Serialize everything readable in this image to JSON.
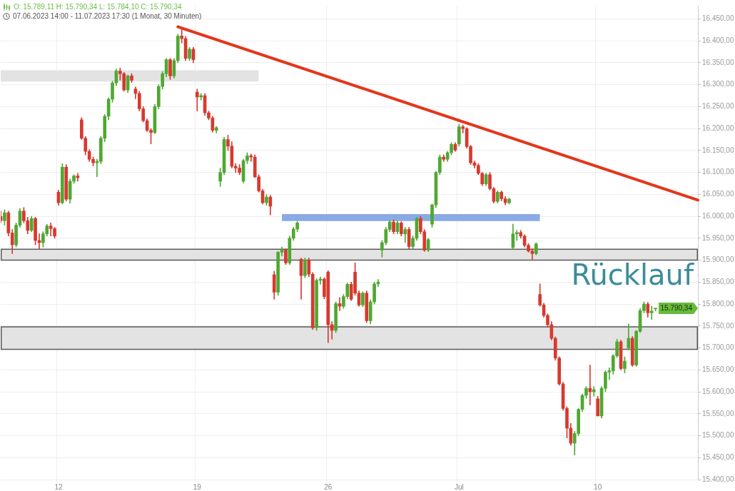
{
  "chart_data": {
    "type": "candlestick",
    "title": "O: 15.789,11  H: 15.790,34  L: 15.784,10  C: 15.790,34",
    "subtitle": "07.06.2023 14:00 - 11.07.2023 17:30   (1 Monat, 30 Minuten)",
    "categories": [
      null,
      null,
      null,
      null,
      null,
      null,
      null,
      null,
      null,
      null,
      null,
      null,
      null,
      null,
      null,
      "12",
      null,
      null,
      null,
      null,
      null,
      null,
      null,
      null,
      null,
      null,
      null,
      null,
      null,
      null,
      null,
      null,
      null,
      null,
      null,
      null,
      null,
      null,
      null,
      null,
      null,
      null,
      null,
      null,
      null,
      null,
      null,
      null,
      null,
      null,
      null,
      "19",
      null,
      null,
      null,
      null,
      null,
      null,
      null,
      null,
      null,
      null,
      null,
      null,
      null,
      null,
      null,
      null,
      null,
      null,
      null,
      null,
      null,
      null,
      null,
      null,
      null,
      null,
      null,
      null,
      null,
      null,
      null,
      null,
      null,
      "26",
      null,
      null,
      null,
      null,
      null,
      null,
      null,
      null,
      null,
      null,
      null,
      null,
      null,
      null,
      null,
      null,
      null,
      null,
      null,
      null,
      null,
      null,
      null,
      null,
      null,
      null,
      null,
      null,
      null,
      null,
      null,
      null,
      null,
      "Jul",
      null,
      null,
      null,
      null,
      null,
      null,
      null,
      null,
      null,
      null,
      null,
      null,
      null,
      null,
      null,
      null,
      null,
      null,
      null,
      null,
      null,
      null,
      null,
      null,
      null,
      null,
      null,
      null,
      null,
      null,
      null,
      null,
      null,
      null,
      null,
      "10",
      null,
      null,
      null,
      null,
      null,
      null,
      null,
      null,
      null,
      null,
      null,
      null,
      null,
      null,
      null,
      null,
      null,
      null,
      null,
      null,
      null,
      null,
      null,
      null,
      null,
      null
    ],
    "ohlc": [
      [
        16000,
        16012,
        15985,
        15990
      ],
      [
        15990,
        16015,
        15980,
        16008
      ],
      [
        16008,
        16012,
        15955,
        15962
      ],
      [
        15962,
        15970,
        15915,
        15935
      ],
      [
        15935,
        15985,
        15930,
        15980
      ],
      [
        15980,
        16018,
        15975,
        16012
      ],
      [
        16012,
        16020,
        15985,
        15990
      ],
      [
        15990,
        15998,
        15960,
        15968
      ],
      [
        15968,
        16000,
        15965,
        15995
      ],
      [
        15995,
        15998,
        15935,
        15945
      ],
      [
        15945,
        15960,
        15925,
        15940
      ],
      [
        15940,
        15965,
        15930,
        15960
      ],
      [
        15960,
        15982,
        15955,
        15978
      ],
      [
        15978,
        15985,
        15955,
        15972
      ],
      [
        15972,
        15975,
        15950,
        15955
      ],
      [
        16055,
        16060,
        16025,
        16031
      ],
      [
        16031,
        16120,
        16028,
        16112
      ],
      [
        16112,
        16118,
        16035,
        16039
      ],
      [
        16039,
        16085,
        16030,
        16080
      ],
      [
        16080,
        16095,
        16075,
        16092
      ],
      [
        16092,
        16098,
        16080,
        16088
      ],
      [
        16220,
        16225,
        16175,
        16178
      ],
      [
        16178,
        16182,
        16140,
        16148
      ],
      [
        16148,
        16152,
        16125,
        16130
      ],
      [
        16130,
        16135,
        16115,
        16122
      ],
      [
        16122,
        16130,
        16090,
        16125
      ],
      [
        16125,
        16182,
        16120,
        16178
      ],
      [
        16178,
        16232,
        16170,
        16228
      ],
      [
        16228,
        16270,
        16220,
        16267
      ],
      [
        16267,
        16308,
        16260,
        16304
      ],
      [
        16304,
        16336,
        16298,
        16331
      ],
      [
        16331,
        16338,
        16310,
        16325
      ],
      [
        16325,
        16328,
        16285,
        16288
      ],
      [
        16288,
        16322,
        16282,
        16320
      ],
      [
        16320,
        16325,
        16305,
        16310
      ],
      [
        16290,
        16295,
        16268,
        16280
      ],
      [
        16280,
        16285,
        16240,
        16245
      ],
      [
        16245,
        16250,
        16215,
        16218
      ],
      [
        16218,
        16222,
        16193,
        16196
      ],
      [
        16196,
        16200,
        16165,
        16191
      ],
      [
        16191,
        16255,
        16188,
        16250
      ],
      [
        16250,
        16300,
        16245,
        16296
      ],
      [
        16296,
        16330,
        16290,
        16325
      ],
      [
        16325,
        16360,
        16318,
        16357
      ],
      [
        16357,
        16360,
        16312,
        16320
      ],
      [
        16320,
        16360,
        16315,
        16355
      ],
      [
        16355,
        16415,
        16350,
        16411
      ],
      [
        16411,
        16427,
        16395,
        16405
      ],
      [
        16405,
        16410,
        16355,
        16360
      ],
      [
        16360,
        16385,
        16355,
        16381
      ],
      [
        16381,
        16385,
        16350,
        16357
      ],
      [
        16283,
        16290,
        16240,
        16272
      ],
      [
        16272,
        16280,
        16265,
        16275
      ],
      [
        16275,
        16280,
        16230,
        16236
      ],
      [
        16236,
        16240,
        16220,
        16224
      ],
      [
        16224,
        16228,
        16192,
        16196
      ],
      [
        16196,
        16205,
        16190,
        16202
      ],
      [
        16080,
        16110,
        16068,
        16100
      ],
      [
        16100,
        16180,
        16095,
        16175
      ],
      [
        16175,
        16185,
        16150,
        16160
      ],
      [
        16160,
        16170,
        16110,
        16114
      ],
      [
        16114,
        16120,
        16100,
        16110
      ],
      [
        16110,
        16118,
        16095,
        16100
      ],
      [
        16080,
        16130,
        16076,
        16127
      ],
      [
        16127,
        16145,
        16120,
        16138
      ],
      [
        16138,
        16142,
        16125,
        16135
      ],
      [
        16135,
        16140,
        16088,
        16090
      ],
      [
        16090,
        16095,
        16055,
        16058
      ],
      [
        16058,
        16062,
        16028,
        16031
      ],
      [
        16031,
        16050,
        16025,
        16044
      ],
      [
        16044,
        16048,
        16003,
        16023
      ],
      [
        15867,
        15875,
        15811,
        15827
      ],
      [
        15827,
        15920,
        15820,
        15918
      ],
      [
        15918,
        15930,
        15910,
        15923
      ],
      [
        15923,
        15926,
        15890,
        15894
      ],
      [
        15894,
        15955,
        15890,
        15950
      ],
      [
        15950,
        15975,
        15945,
        15971
      ],
      [
        15971,
        15988,
        15965,
        15985
      ],
      [
        15902,
        15905,
        15811,
        15865
      ],
      [
        15865,
        15905,
        15860,
        15900
      ],
      [
        15900,
        15905,
        15862,
        15868
      ],
      [
        15868,
        15872,
        15742,
        15746
      ],
      [
        15746,
        15858,
        15740,
        15854
      ],
      [
        15854,
        15862,
        15845,
        15857
      ],
      [
        15857,
        15860,
        15812,
        15817
      ],
      [
        15873,
        15876,
        15712,
        15753
      ],
      [
        15753,
        15760,
        15720,
        15740
      ],
      [
        15740,
        15805,
        15735,
        15801
      ],
      [
        15801,
        15815,
        15785,
        15795
      ],
      [
        15795,
        15822,
        15790,
        15817
      ],
      [
        15817,
        15848,
        15812,
        15845
      ],
      [
        15845,
        15850,
        15808,
        15811
      ],
      [
        15873,
        15894,
        15820,
        15825
      ],
      [
        15825,
        15830,
        15795,
        15798
      ],
      [
        15798,
        15828,
        15794,
        15825
      ],
      [
        15825,
        15830,
        15758,
        15762
      ],
      [
        15762,
        15810,
        15755,
        15805
      ],
      [
        15805,
        15850,
        15800,
        15846
      ],
      [
        15846,
        15856,
        15840,
        15850
      ],
      [
        15923,
        15945,
        15907,
        15940
      ],
      [
        15940,
        15975,
        15935,
        15970
      ],
      [
        15970,
        15990,
        15965,
        15987
      ],
      [
        15987,
        15992,
        15960,
        15965
      ],
      [
        15965,
        15990,
        15960,
        15985
      ],
      [
        15985,
        15988,
        15955,
        15960
      ],
      [
        15960,
        15975,
        15940,
        15970
      ],
      [
        15970,
        15975,
        15926,
        15931
      ],
      [
        15931,
        15955,
        15926,
        15950
      ],
      [
        15950,
        15998,
        15945,
        15995
      ],
      [
        15995,
        16000,
        15960,
        15965
      ],
      [
        15965,
        15970,
        15920,
        15923
      ],
      [
        15923,
        15950,
        15920,
        15947
      ],
      [
        15982,
        16028,
        15975,
        16026
      ],
      [
        16026,
        16102,
        16020,
        16100
      ],
      [
        16100,
        16140,
        16095,
        16135
      ],
      [
        16135,
        16140,
        16125,
        16130
      ],
      [
        16130,
        16148,
        16125,
        16145
      ],
      [
        16145,
        16168,
        16140,
        16164
      ],
      [
        16164,
        16168,
        16148,
        16151
      ],
      [
        16165,
        16210,
        16160,
        16204
      ],
      [
        16204,
        16208,
        16190,
        16200
      ],
      [
        16200,
        16202,
        16155,
        16159
      ],
      [
        16159,
        16162,
        16118,
        16122
      ],
      [
        16122,
        16126,
        16110,
        16116
      ],
      [
        16116,
        16120,
        16095,
        16098
      ],
      [
        16098,
        16100,
        16070,
        16074
      ],
      [
        16074,
        16098,
        16070,
        16095
      ],
      [
        16095,
        16100,
        16060,
        16063
      ],
      [
        16063,
        16066,
        16030,
        16034
      ],
      [
        16034,
        16058,
        16030,
        16055
      ],
      [
        16055,
        16058,
        16035,
        16040
      ],
      [
        16040,
        16045,
        16026,
        16031
      ],
      [
        16031,
        16042,
        16028,
        16039
      ],
      [
        15929,
        15982,
        15926,
        15960
      ],
      [
        15960,
        15968,
        15945,
        15963
      ],
      [
        15963,
        15968,
        15950,
        15955
      ],
      [
        15955,
        15958,
        15930,
        15934
      ],
      [
        15934,
        15938,
        15918,
        15921
      ],
      [
        15921,
        15926,
        15902,
        15915
      ],
      [
        15915,
        15940,
        15912,
        15937
      ],
      [
        15822,
        15846,
        15795,
        15798
      ],
      [
        15798,
        15802,
        15770,
        15774
      ],
      [
        15774,
        15778,
        15748,
        15753
      ],
      [
        15753,
        15760,
        15718,
        15722
      ],
      [
        15722,
        15725,
        15672,
        15677
      ],
      [
        15677,
        15680,
        15615,
        15618
      ],
      [
        15618,
        15622,
        15558,
        15562
      ],
      [
        15562,
        15566,
        15495,
        15517
      ],
      [
        15517,
        15528,
        15478,
        15483
      ],
      [
        15483,
        15510,
        15456,
        15505
      ],
      [
        15505,
        15562,
        15500,
        15560
      ],
      [
        15560,
        15595,
        15555,
        15592
      ],
      [
        15592,
        15612,
        15585,
        15608
      ],
      [
        15608,
        15661,
        15570,
        15600
      ],
      [
        15600,
        15612,
        15590,
        15605
      ],
      [
        15584,
        15590,
        15545,
        15545
      ],
      [
        15545,
        15612,
        15540,
        15608
      ],
      [
        15608,
        15648,
        15600,
        15645
      ],
      [
        15645,
        15655,
        15628,
        15648
      ],
      [
        15648,
        15685,
        15640,
        15682
      ],
      [
        15682,
        15720,
        15678,
        15714
      ],
      [
        15714,
        15718,
        15650,
        15653
      ],
      [
        15653,
        15680,
        15643,
        15670
      ],
      [
        15700,
        15755,
        15695,
        15722
      ],
      [
        15722,
        15726,
        15658,
        15661
      ],
      [
        15661,
        15740,
        15658,
        15738
      ],
      [
        15738,
        15790,
        15735,
        15785
      ],
      [
        15785,
        15805,
        15780,
        15800
      ],
      [
        15800,
        15804,
        15770,
        15780
      ],
      [
        15780,
        15795,
        15765,
        15784
      ],
      [
        15789.11,
        15790.34,
        15784.1,
        15790.34
      ],
      null,
      null,
      null,
      null,
      null,
      null,
      null,
      null,
      null,
      null,
      null
    ],
    "series": [
      {
        "type": "line",
        "color": "#e3e3e3",
        "values": [
          null,
          null,
          null,
          null,
          null,
          null,
          null,
          null,
          null,
          null,
          null,
          null,
          null,
          null,
          null,
          null,
          null,
          null,
          null,
          null,
          null,
          null,
          null,
          null,
          null,
          null,
          null,
          null,
          null,
          null,
          null,
          null,
          null,
          null,
          null,
          null,
          null,
          null,
          null,
          null,
          null,
          null,
          null,
          null,
          null,
          null,
          null,
          null,
          null,
          null,
          null,
          null,
          null,
          null,
          null,
          null,
          null,
          null,
          null,
          null,
          null,
          null,
          null,
          null,
          null,
          null,
          null,
          null,
          null,
          null,
          null,
          null,
          null,
          null,
          null,
          null,
          null,
          null,
          null,
          null,
          null,
          null,
          null,
          null,
          null,
          null,
          null,
          null,
          null,
          null,
          null,
          null,
          null,
          null,
          null,
          null,
          null,
          null,
          null,
          null,
          null,
          null,
          null,
          null,
          null,
          null,
          null,
          null,
          null,
          null,
          null,
          null,
          null,
          null,
          null,
          null,
          null,
          null,
          null,
          null,
          null,
          null,
          null,
          null,
          null,
          null,
          null,
          null,
          null,
          null,
          null,
          null,
          null,
          null,
          null,
          null,
          null,
          null,
          null,
          null,
          null,
          null,
          null,
          null,
          null,
          null,
          null,
          null,
          null,
          null,
          null,
          null,
          null,
          null,
          null,
          null,
          null,
          null,
          null,
          null,
          null,
          null,
          null,
          null,
          null,
          null,
          null,
          null,
          null,
          null,
          null,
          null,
          null,
          null,
          null,
          null,
          null,
          null,
          null,
          null,
          null,
          null
        ],
        "upper": [
          16333,
          16333,
          16333,
          16333,
          16333,
          16333,
          16333,
          16333,
          16333,
          16333,
          16333,
          16333,
          16333,
          16333,
          16333,
          16333,
          16333,
          16333,
          16333,
          16333,
          16333,
          16333,
          16333,
          16333,
          16333,
          16333,
          16333,
          16333,
          16333,
          16333,
          16333,
          16333,
          16333,
          16333,
          16333,
          16333,
          16333,
          16333,
          16333,
          16333,
          16333,
          16333,
          16333,
          16333,
          16333,
          16333,
          16333,
          16333,
          16333,
          16333,
          16333,
          16333,
          16333,
          16333,
          16333,
          16333,
          16333,
          16333,
          16333,
          16333,
          16333,
          16333,
          16333,
          16333,
          16333,
          16333,
          16333,
          16333,
          null,
          null,
          null,
          null,
          null,
          null,
          null,
          null,
          null,
          null,
          null,
          null,
          null,
          null,
          null,
          null,
          null,
          null,
          null,
          null,
          null,
          null,
          null,
          null,
          null,
          null,
          null,
          null,
          null,
          null,
          null,
          null,
          null,
          null,
          null,
          null,
          null,
          null,
          null,
          null,
          null,
          null,
          null,
          null,
          null,
          null,
          null,
          null,
          null,
          null,
          null,
          null,
          null,
          null,
          null,
          null,
          null,
          null,
          null,
          null,
          null,
          null,
          null,
          null,
          null,
          null,
          null,
          null,
          null,
          null,
          null,
          null,
          null,
          null,
          null,
          null,
          null,
          null,
          null,
          null,
          null,
          null,
          null,
          null,
          null,
          null,
          null,
          null,
          null,
          null,
          null,
          null,
          null,
          null,
          null,
          null,
          null,
          null,
          null,
          null,
          null,
          null,
          null,
          null,
          null,
          null,
          null,
          null,
          null,
          null,
          null,
          null,
          null,
          null
        ],
        "lower": [
          16307,
          16307,
          16307,
          16307,
          16307,
          16307,
          16307,
          16307,
          16307,
          16307,
          16307,
          16307,
          16307,
          16307,
          16307,
          16307,
          16307,
          16307,
          16307,
          16307,
          16307,
          16307,
          16307,
          16307,
          16307,
          16307,
          16307,
          16307,
          16307,
          16307,
          16307,
          16307,
          16307,
          16307,
          16307,
          16307,
          16307,
          16307,
          16307,
          16307,
          16307,
          16307,
          16307,
          16307,
          16307,
          16307,
          16307,
          16307,
          16307,
          16307,
          16307,
          16307,
          16307,
          16307,
          16307,
          16307,
          16307,
          16307,
          16307,
          16307,
          16307,
          16307,
          16307,
          16307,
          16307,
          16307,
          16307,
          16307,
          null,
          null,
          null,
          null,
          null,
          null,
          null,
          null,
          null,
          null,
          null,
          null,
          null,
          null,
          null,
          null,
          null,
          null,
          null,
          null,
          null,
          null,
          null,
          null,
          null,
          null,
          null,
          null,
          null,
          null,
          null,
          null,
          null,
          null,
          null,
          null,
          null,
          null,
          null,
          null,
          null,
          null,
          null,
          null,
          null,
          null,
          null,
          null,
          null,
          null,
          null,
          null,
          null,
          null,
          null,
          null,
          null,
          null,
          null,
          null,
          null,
          null,
          null,
          null,
          null,
          null,
          null,
          null,
          null,
          null,
          null,
          null,
          null,
          null,
          null,
          null,
          null,
          null,
          null,
          null,
          null,
          null,
          null,
          null,
          null,
          null,
          null,
          null,
          null,
          null,
          null,
          null,
          null,
          null,
          null,
          null,
          null,
          null,
          null,
          null,
          null,
          null,
          null,
          null,
          null,
          null,
          null,
          null,
          null,
          null,
          null,
          null,
          null,
          null
        ]
      },
      {
        "type": "line",
        "color": "#8aaae3",
        "values": [
          null,
          null,
          null,
          null,
          null,
          null,
          null,
          null,
          null,
          null,
          null,
          null,
          null,
          null,
          null,
          null,
          null,
          null,
          null,
          null,
          null,
          null,
          null,
          null,
          null,
          null,
          null,
          null,
          null,
          null,
          null,
          null,
          null,
          null,
          null,
          null,
          null,
          null,
          null,
          null,
          null,
          null,
          null,
          null,
          null,
          null,
          null,
          null,
          null,
          null,
          null,
          null,
          null,
          null,
          null,
          null,
          null,
          null,
          null,
          null,
          null,
          null,
          null,
          null,
          null,
          null,
          null,
          null,
          null,
          null,
          null,
          null,
          null,
          null,
          null,
          null,
          null,
          null,
          null,
          null,
          null,
          null,
          null,
          null,
          null,
          null,
          null,
          null,
          null,
          null,
          null,
          null,
          null,
          null,
          null,
          null,
          null,
          null,
          null,
          null,
          null,
          null,
          null,
          null,
          null,
          null,
          null,
          null,
          null,
          null,
          null,
          null,
          null,
          null,
          null,
          null,
          null,
          null,
          null,
          null,
          null,
          null,
          null,
          null,
          null,
          null,
          null,
          null,
          null,
          null,
          null,
          null,
          null,
          null,
          null,
          null,
          null,
          null,
          null,
          null,
          null,
          null,
          null,
          null,
          null,
          null,
          null,
          null,
          null,
          null,
          null,
          null,
          null,
          null,
          null,
          null,
          null,
          null,
          null,
          null,
          null,
          null,
          null,
          null,
          null,
          null,
          null,
          null,
          null,
          null,
          null,
          null,
          null,
          null,
          null,
          null,
          null,
          null,
          null,
          null,
          null,
          null
        ],
        "upper": [
          null,
          null,
          null,
          null,
          null,
          null,
          null,
          null,
          null,
          null,
          null,
          null,
          null,
          null,
          null,
          null,
          null,
          null,
          null,
          null,
          null,
          null,
          null,
          null,
          null,
          null,
          null,
          null,
          null,
          null,
          null,
          null,
          null,
          null,
          null,
          null,
          null,
          null,
          null,
          null,
          null,
          null,
          null,
          null,
          null,
          null,
          null,
          null,
          null,
          null,
          null,
          null,
          null,
          null,
          null,
          null,
          null,
          null,
          null,
          null,
          null,
          null,
          null,
          null,
          null,
          null,
          null,
          null,
          null,
          null,
          null,
          null,
          null,
          16005,
          16005,
          16005,
          16005,
          16005,
          16005,
          16005,
          16005,
          16005,
          16005,
          16005,
          16005,
          16005,
          16005,
          16005,
          16005,
          16005,
          16005,
          16005,
          16005,
          16005,
          16005,
          16005,
          16005,
          16005,
          16005,
          16005,
          16005,
          16005,
          16005,
          16005,
          16005,
          16005,
          16005,
          16005,
          16005,
          16005,
          16005,
          16005,
          16005,
          16005,
          16005,
          16005,
          16005,
          16005,
          16005,
          16005,
          16005,
          16005,
          16005,
          16005,
          16005,
          16005,
          16005,
          16005,
          16005,
          16005,
          16005,
          16005,
          16005,
          16005,
          16005,
          16005,
          16005,
          16005,
          16005,
          16005,
          16005,
          null,
          null,
          null,
          null,
          null,
          null,
          null,
          null,
          null,
          null,
          null,
          null,
          null,
          null,
          null,
          null,
          null,
          null,
          null,
          null,
          null,
          null,
          null,
          null,
          null,
          null,
          null,
          null,
          null,
          null,
          null,
          null,
          null,
          null,
          null,
          null,
          null,
          null,
          null,
          null,
          null
        ],
        "lower": [
          null,
          null,
          null,
          null,
          null,
          null,
          null,
          null,
          null,
          null,
          null,
          null,
          null,
          null,
          null,
          null,
          null,
          null,
          null,
          null,
          null,
          null,
          null,
          null,
          null,
          null,
          null,
          null,
          null,
          null,
          null,
          null,
          null,
          null,
          null,
          null,
          null,
          null,
          null,
          null,
          null,
          null,
          null,
          null,
          null,
          null,
          null,
          null,
          null,
          null,
          null,
          null,
          null,
          null,
          null,
          null,
          null,
          null,
          null,
          null,
          null,
          null,
          null,
          null,
          null,
          null,
          null,
          null,
          null,
          null,
          null,
          null,
          null,
          15989,
          15989,
          15989,
          15989,
          15989,
          15989,
          15989,
          15989,
          15989,
          15989,
          15989,
          15989,
          15989,
          15989,
          15989,
          15989,
          15989,
          15989,
          15989,
          15989,
          15989,
          15989,
          15989,
          15989,
          15989,
          15989,
          15989,
          15989,
          15989,
          15989,
          15989,
          15989,
          15989,
          15989,
          15989,
          15989,
          15989,
          15989,
          15989,
          15989,
          15989,
          15989,
          15989,
          15989,
          15989,
          15989,
          15989,
          15989,
          15989,
          15989,
          15989,
          15989,
          15989,
          15989,
          15989,
          15989,
          15989,
          15989,
          15989,
          15989,
          15989,
          15989,
          15989,
          15989,
          15989,
          15989,
          15989,
          15989,
          null,
          null,
          null,
          null,
          null,
          null,
          null,
          null,
          null,
          null,
          null,
          null,
          null,
          null,
          null,
          null,
          null,
          null,
          null,
          null,
          null,
          null,
          null,
          null,
          null,
          null,
          null,
          null,
          null,
          null,
          null,
          null,
          null,
          null,
          null,
          null,
          null,
          null,
          null,
          null,
          null
        ]
      },
      {
        "type": "line",
        "color": "#e5351b",
        "values": [
          null,
          null,
          null,
          null,
          null,
          null,
          null,
          null,
          null,
          null,
          null,
          null,
          null,
          null,
          null,
          null,
          null,
          null,
          null,
          null,
          null,
          null,
          null,
          null,
          null,
          null,
          null,
          null,
          null,
          null,
          null,
          null,
          null,
          null,
          null,
          null,
          null,
          null,
          null,
          null,
          null,
          null,
          null,
          null,
          null,
          null,
          16432,
          null,
          null,
          null,
          null,
          null,
          null,
          null,
          null,
          null,
          null,
          null,
          null,
          null,
          null,
          null,
          null,
          null,
          null,
          null,
          null,
          null,
          null,
          null,
          null,
          null,
          null,
          null,
          null,
          null,
          null,
          null,
          null,
          null,
          null,
          null,
          null,
          null,
          null,
          null,
          null,
          null,
          null,
          null,
          null,
          null,
          null,
          null,
          null,
          null,
          null,
          null,
          null,
          null,
          null,
          null,
          null,
          null,
          null,
          null,
          null,
          null,
          null,
          null,
          null,
          null,
          null,
          null,
          null,
          null,
          null,
          null,
          null,
          null,
          null,
          null,
          null,
          null,
          null,
          null,
          null,
          null,
          null,
          null,
          null,
          null,
          null,
          null,
          null,
          null,
          null,
          null,
          null,
          null,
          null,
          null,
          null,
          null,
          null,
          null,
          null,
          null,
          null,
          null,
          null,
          null,
          null,
          null,
          null,
          null,
          null,
          null,
          null,
          null,
          null,
          null,
          null,
          null,
          null,
          null,
          null,
          null,
          null,
          null,
          null,
          null,
          null,
          null,
          null,
          null,
          null,
          null,
          null,
          null,
          null,
          16037
        ]
      }
    ],
    "ylim": [
      15400,
      16480
    ],
    "yticks": [
      {
        "value": 15400,
        "label": "15.400,00"
      },
      {
        "value": 15450,
        "label": "15.450,00"
      },
      {
        "value": 15500,
        "label": "15.500,00"
      },
      {
        "value": 15550,
        "label": "15.550,00"
      },
      {
        "value": 15600,
        "label": "15.600,00"
      },
      {
        "value": 15650,
        "label": "15.650,00"
      },
      {
        "value": 15700,
        "label": "15.700,00"
      },
      {
        "value": 15750,
        "label": "15.750,00"
      },
      {
        "value": 15800,
        "label": "15.800,00"
      },
      {
        "value": 15850,
        "label": "15.850,00"
      },
      {
        "value": 15900,
        "label": "15.900,00"
      },
      {
        "value": 15950,
        "label": "15.950,00"
      },
      {
        "value": 16000,
        "label": "16.000,00"
      },
      {
        "value": 16050,
        "label": "16.050,00"
      },
      {
        "value": 16100,
        "label": "16.100,00"
      },
      {
        "value": 16150,
        "label": "16.150,00"
      },
      {
        "value": 16200,
        "label": "16.200,00"
      },
      {
        "value": 16250,
        "label": "16.250,00"
      },
      {
        "value": 16300,
        "label": "16.300,00"
      },
      {
        "value": 16350,
        "label": "16.350,00"
      },
      {
        "value": 16400,
        "label": "16.400,00"
      },
      {
        "value": 16450,
        "label": "16.450,00"
      }
    ],
    "bands": [
      {
        "axis": "y",
        "from": 15900,
        "to": 15925,
        "color": "#e3e3e3"
      },
      {
        "axis": "y",
        "from": 15697,
        "to": 15748,
        "color": "#e3e3e3"
      }
    ],
    "annotations": [
      "Rücklauf",
      "15.790,34"
    ],
    "grid": true
  }
}
